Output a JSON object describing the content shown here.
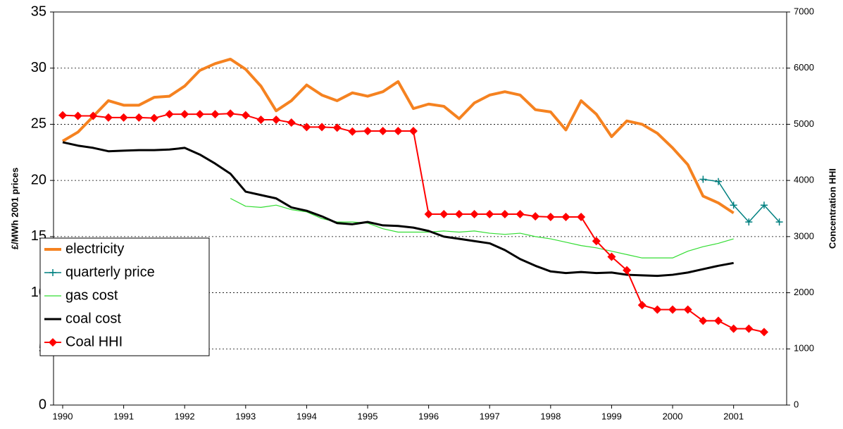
{
  "chart_data": {
    "type": "line",
    "y_label": "£/MWh 2001 prices",
    "y2_label": "Concentration HHI",
    "xlim": [
      1989.85,
      2001.87
    ],
    "xticks": [
      1990,
      1991,
      1992,
      1993,
      1994,
      1995,
      1996,
      1997,
      1998,
      1999,
      2000,
      2001
    ],
    "ylim": [
      0,
      35
    ],
    "yticks": [
      0,
      5,
      10,
      15,
      20,
      25,
      30,
      35
    ],
    "y2lim": [
      0,
      7000
    ],
    "y2ticks": [
      0,
      1000,
      2000,
      3000,
      4000,
      5000,
      6000,
      7000
    ],
    "grid": true,
    "legend": "lower left",
    "series": [
      {
        "name": "electricity",
        "color": "#f58220",
        "width": 4,
        "marker": "none",
        "x": [
          1990,
          1990.25,
          1990.5,
          1990.75,
          1991,
          1991.25,
          1991.5,
          1991.75,
          1992,
          1992.25,
          1992.5,
          1992.75,
          1993,
          1993.25,
          1993.5,
          1993.75,
          1994,
          1994.25,
          1994.5,
          1994.75,
          1995,
          1995.25,
          1995.5,
          1995.75,
          1996,
          1996.25,
          1996.5,
          1996.75,
          1997,
          1997.25,
          1997.5,
          1997.75,
          1998,
          1998.25,
          1998.5,
          1998.75,
          1999,
          1999.25,
          1999.5,
          1999.75,
          2000,
          2000.25,
          2000.5,
          2000.75,
          2001
        ],
        "values": [
          23.5,
          24.3,
          25.7,
          27.1,
          26.7,
          26.7,
          27.4,
          27.5,
          28.4,
          29.8,
          30.4,
          30.8,
          29.9,
          28.4,
          26.2,
          27.1,
          28.5,
          27.6,
          27.1,
          27.8,
          27.5,
          27.9,
          28.8,
          26.4,
          26.8,
          26.6,
          25.5,
          26.9,
          27.6,
          27.9,
          27.6,
          26.3,
          26.1,
          24.5,
          27.1,
          25.9,
          23.9,
          25.3,
          25.0,
          24.2,
          22.9,
          21.4,
          18.6,
          18.0,
          17.1
        ]
      },
      {
        "name": "quarterly price",
        "color": "#008080",
        "width": 1.5,
        "marker": "plus",
        "x": [
          2000.5,
          2000.75,
          2001,
          2001.25,
          2001.5,
          2001.75
        ],
        "values": [
          20.1,
          19.9,
          17.8,
          16.3,
          17.8,
          16.3
        ]
      },
      {
        "name": "gas cost",
        "color": "#33dd33",
        "width": 1.2,
        "marker": "none",
        "x": [
          1992.75,
          1993,
          1993.25,
          1993.5,
          1993.75,
          1994,
          1994.25,
          1994.5,
          1994.75,
          1995,
          1995.25,
          1995.5,
          1995.75,
          1996,
          1996.25,
          1996.5,
          1996.75,
          1997,
          1997.25,
          1997.5,
          1997.75,
          1998,
          1998.25,
          1998.5,
          1998.75,
          1999,
          1999.25,
          1999.5,
          1999.75,
          2000,
          2000.25,
          2000.5,
          2000.75,
          2001
        ],
        "values": [
          18.4,
          17.7,
          17.6,
          17.8,
          17.4,
          17.2,
          16.6,
          16.3,
          16.3,
          16.2,
          15.7,
          15.4,
          15.4,
          15.4,
          15.5,
          15.4,
          15.5,
          15.3,
          15.2,
          15.3,
          15.0,
          14.8,
          14.5,
          14.2,
          14.0,
          13.7,
          13.4,
          13.1,
          13.1,
          13.1,
          13.7,
          14.1,
          14.4,
          14.8
        ]
      },
      {
        "name": "coal cost",
        "color": "#000000",
        "width": 3,
        "marker": "none",
        "x": [
          1990,
          1990.25,
          1990.5,
          1990.75,
          1991,
          1991.25,
          1991.5,
          1991.75,
          1992,
          1992.25,
          1992.5,
          1992.75,
          1993,
          1993.25,
          1993.5,
          1993.75,
          1994,
          1994.25,
          1994.5,
          1994.75,
          1995,
          1995.25,
          1995.5,
          1995.75,
          1996,
          1996.25,
          1996.5,
          1996.75,
          1997,
          1997.25,
          1997.5,
          1997.75,
          1998,
          1998.25,
          1998.5,
          1998.75,
          1999,
          1999.25,
          1999.5,
          1999.75,
          2000,
          2000.25,
          2000.5,
          2000.75,
          2001
        ],
        "values": [
          23.4,
          23.1,
          22.9,
          22.6,
          22.65,
          22.7,
          22.7,
          22.75,
          22.9,
          22.3,
          21.5,
          20.6,
          19.0,
          18.7,
          18.4,
          17.6,
          17.3,
          16.8,
          16.2,
          16.1,
          16.3,
          16.0,
          15.95,
          15.8,
          15.5,
          15.0,
          14.8,
          14.6,
          14.4,
          13.8,
          13.0,
          12.4,
          11.9,
          11.75,
          11.85,
          11.75,
          11.8,
          11.6,
          11.55,
          11.5,
          11.6,
          11.8,
          12.1,
          12.4,
          12.65
        ]
      },
      {
        "name": "Coal HHI",
        "color": "#ff0000",
        "width": 2,
        "marker": "diamond",
        "axis": "y2",
        "x": [
          1990,
          1990.25,
          1990.5,
          1990.75,
          1991,
          1991.25,
          1991.5,
          1991.75,
          1992,
          1992.25,
          1992.5,
          1992.75,
          1993,
          1993.25,
          1993.5,
          1993.75,
          1994,
          1994.25,
          1994.5,
          1994.75,
          1995,
          1995.25,
          1995.5,
          1995.75,
          1996,
          1996.25,
          1996.5,
          1996.75,
          1997,
          1997.25,
          1997.5,
          1997.75,
          1998,
          1998.25,
          1998.5,
          1998.75,
          1999,
          1999.25,
          1999.5,
          1999.75,
          2000,
          2000.25,
          2000.5,
          2000.75,
          2001,
          2001.25,
          2001.5
        ],
        "values": [
          5160,
          5150,
          5150,
          5120,
          5120,
          5120,
          5110,
          5180,
          5180,
          5180,
          5180,
          5190,
          5160,
          5080,
          5080,
          5030,
          4950,
          4950,
          4940,
          4870,
          4880,
          4880,
          4880,
          4880,
          3400,
          3400,
          3400,
          3400,
          3400,
          3400,
          3400,
          3360,
          3350,
          3350,
          3350,
          2920,
          2640,
          2400,
          1780,
          1700,
          1700,
          1700,
          1500,
          1500,
          1360,
          1360,
          1300
        ]
      }
    ]
  }
}
